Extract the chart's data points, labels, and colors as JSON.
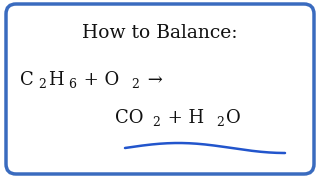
{
  "title": "How to Balance:",
  "line1_parts": [
    "C",
    "2",
    "H",
    "6",
    " + O",
    "2",
    " →"
  ],
  "line2_parts": [
    "CO",
    "2",
    " + H",
    "2",
    "O"
  ],
  "bg_color": "#ffffff",
  "border_color": "#3a6bbf",
  "text_color": "#111111",
  "title_fontsize": 13.5,
  "chem_fontsize": 13,
  "sub_fontsize": 9,
  "wave_color": "#2255cc",
  "border_linewidth": 2.5
}
